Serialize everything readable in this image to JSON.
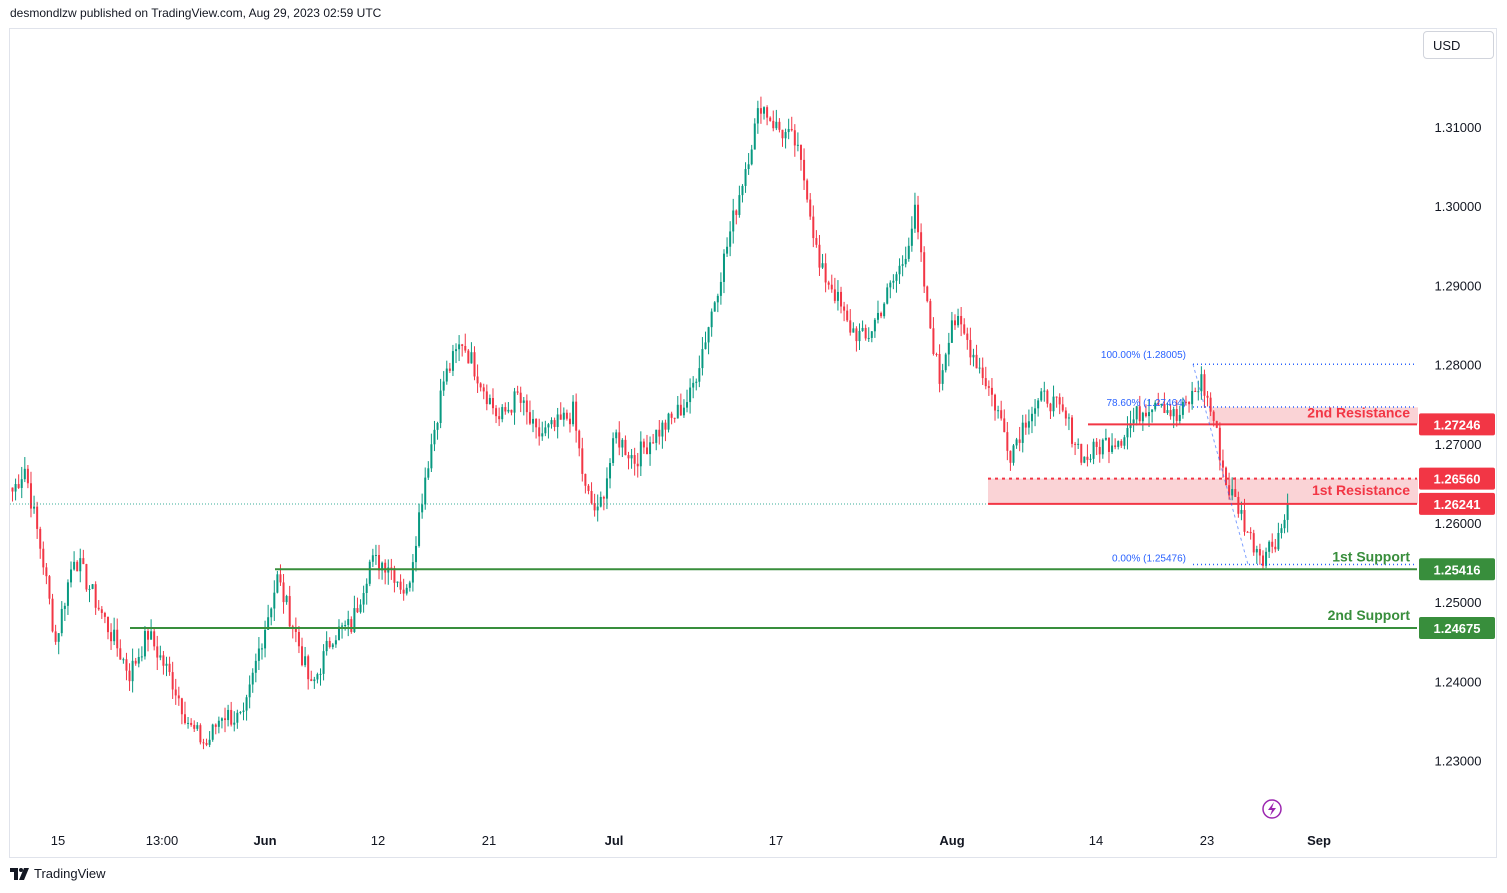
{
  "header": {
    "attribution": "desmondlzw published on TradingView.com, Aug 29, 2023 02:59 UTC"
  },
  "toolbar": {
    "currency_label": "USD"
  },
  "footer": {
    "brand_label": "TradingView"
  },
  "icons": {
    "footer_logo": "tradingview-logo-icon",
    "replay": "lightning-icon"
  },
  "colors": {
    "up": "#089981",
    "down": "#f23645",
    "resistance": "#f23645",
    "support": "#388e3c",
    "fib": "#2962ff",
    "zone_fill": "#f8c4c8"
  },
  "chart_data": {
    "type": "candlestick",
    "y_ticks": [
      "1.23000",
      "1.24000",
      "1.25000",
      "1.26000",
      "1.27000",
      "1.28000",
      "1.29000",
      "1.30000",
      "1.31000"
    ],
    "ylim": [
      1.22,
      1.323
    ],
    "x_ticks": [
      "15",
      "13:00",
      "Jun",
      "12",
      "21",
      "Jul",
      "17",
      "Aug",
      "14",
      "23",
      "Sep"
    ],
    "price_path": [
      {
        "bar": 0,
        "y": 1.264
      },
      {
        "bar": 4,
        "y": 1.267
      },
      {
        "bar": 10,
        "y": 1.255
      },
      {
        "bar": 14,
        "y": 1.245
      },
      {
        "bar": 20,
        "y": 1.256
      },
      {
        "bar": 26,
        "y": 1.251
      },
      {
        "bar": 32,
        "y": 1.246
      },
      {
        "bar": 38,
        "y": 1.241
      },
      {
        "bar": 44,
        "y": 1.246
      },
      {
        "bar": 52,
        "y": 1.24
      },
      {
        "bar": 58,
        "y": 1.234
      },
      {
        "bar": 63,
        "y": 1.232
      },
      {
        "bar": 68,
        "y": 1.236
      },
      {
        "bar": 75,
        "y": 1.235
      },
      {
        "bar": 80,
        "y": 1.244
      },
      {
        "bar": 86,
        "y": 1.253
      },
      {
        "bar": 92,
        "y": 1.246
      },
      {
        "bar": 97,
        "y": 1.239
      },
      {
        "bar": 104,
        "y": 1.246
      },
      {
        "bar": 110,
        "y": 1.247
      },
      {
        "bar": 116,
        "y": 1.255
      },
      {
        "bar": 122,
        "y": 1.255
      },
      {
        "bar": 128,
        "y": 1.251
      },
      {
        "bar": 134,
        "y": 1.266
      },
      {
        "bar": 140,
        "y": 1.278
      },
      {
        "bar": 146,
        "y": 1.283
      },
      {
        "bar": 152,
        "y": 1.278
      },
      {
        "bar": 158,
        "y": 1.273
      },
      {
        "bar": 164,
        "y": 1.276
      },
      {
        "bar": 170,
        "y": 1.271
      },
      {
        "bar": 176,
        "y": 1.272
      },
      {
        "bar": 182,
        "y": 1.274
      },
      {
        "bar": 186,
        "y": 1.264
      },
      {
        "bar": 190,
        "y": 1.261
      },
      {
        "bar": 196,
        "y": 1.271
      },
      {
        "bar": 202,
        "y": 1.268
      },
      {
        "bar": 208,
        "y": 1.271
      },
      {
        "bar": 214,
        "y": 1.273
      },
      {
        "bar": 220,
        "y": 1.276
      },
      {
        "bar": 226,
        "y": 1.285
      },
      {
        "bar": 232,
        "y": 1.295
      },
      {
        "bar": 238,
        "y": 1.305
      },
      {
        "bar": 243,
        "y": 1.313
      },
      {
        "bar": 248,
        "y": 1.31
      },
      {
        "bar": 254,
        "y": 1.308
      },
      {
        "bar": 258,
        "y": 1.302
      },
      {
        "bar": 262,
        "y": 1.292
      },
      {
        "bar": 266,
        "y": 1.29
      },
      {
        "bar": 271,
        "y": 1.285
      },
      {
        "bar": 277,
        "y": 1.283
      },
      {
        "bar": 283,
        "y": 1.288
      },
      {
        "bar": 289,
        "y": 1.293
      },
      {
        "bar": 293,
        "y": 1.299
      },
      {
        "bar": 297,
        "y": 1.287
      },
      {
        "bar": 301,
        "y": 1.278
      },
      {
        "bar": 305,
        "y": 1.286
      },
      {
        "bar": 310,
        "y": 1.283
      },
      {
        "bar": 316,
        "y": 1.278
      },
      {
        "bar": 320,
        "y": 1.274
      },
      {
        "bar": 324,
        "y": 1.269
      },
      {
        "bar": 330,
        "y": 1.274
      },
      {
        "bar": 336,
        "y": 1.276
      },
      {
        "bar": 342,
        "y": 1.273
      },
      {
        "bar": 348,
        "y": 1.268
      },
      {
        "bar": 354,
        "y": 1.27
      },
      {
        "bar": 360,
        "y": 1.271
      },
      {
        "bar": 366,
        "y": 1.274
      },
      {
        "bar": 372,
        "y": 1.276
      },
      {
        "bar": 378,
        "y": 1.273
      },
      {
        "bar": 383,
        "y": 1.276
      },
      {
        "bar": 386,
        "y": 1.278
      },
      {
        "bar": 390,
        "y": 1.273
      },
      {
        "bar": 394,
        "y": 1.265
      },
      {
        "bar": 398,
        "y": 1.262
      },
      {
        "bar": 402,
        "y": 1.258
      },
      {
        "bar": 406,
        "y": 1.256
      },
      {
        "bar": 410,
        "y": 1.258
      },
      {
        "bar": 414,
        "y": 1.261
      }
    ],
    "last_price": 1.2624,
    "annotations": {
      "resistance_2": {
        "label": "2nd Resistance",
        "price": "1.27246",
        "value": 1.27246,
        "zone_top": 1.2746
      },
      "resistance_1": {
        "label": "1st Resistance",
        "price": "1.26241",
        "value": 1.26241
      },
      "resistance_1_dotted": {
        "price": "1.26560",
        "value": 1.2656
      },
      "support_1": {
        "label": "1st Support",
        "price": "1.25416",
        "value": 1.25416
      },
      "support_2": {
        "label": "2nd Support",
        "price": "1.24675",
        "value": 1.24675
      },
      "fib_100": {
        "label": "100.00% (1.28005)",
        "value": 1.28005
      },
      "fib_786": {
        "label": "78.60% (1.27464)",
        "value": 1.27464
      },
      "fib_0": {
        "label": "0.00% (1.25476)",
        "value": 1.25476
      }
    }
  }
}
